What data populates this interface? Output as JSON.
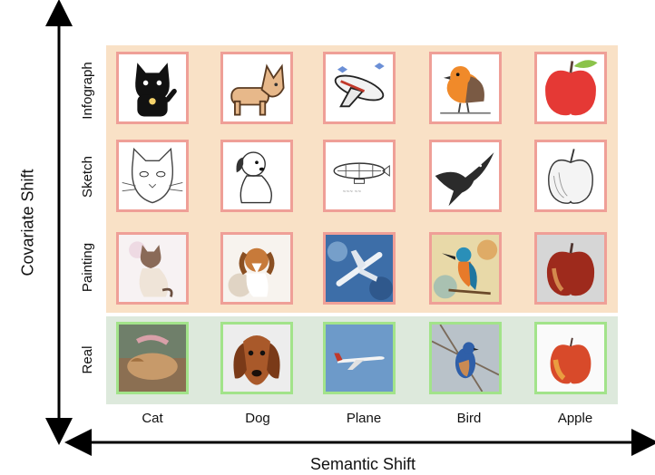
{
  "axes": {
    "y_title": "Covariate Shift",
    "x_title": "Semantic Shift"
  },
  "rows": [
    "Infograph",
    "Sketch",
    "Painting",
    "Real"
  ],
  "columns": [
    "Cat",
    "Dog",
    "Plane",
    "Bird",
    "Apple"
  ],
  "colors": {
    "ood_background": "#f9e1c6",
    "id_background": "#dde9dc",
    "ood_border": "#ef9f97",
    "id_border": "#a2e38a"
  },
  "tiles": [
    {
      "row": "Infograph",
      "col": "Cat",
      "icon": "lucky-cat-icon"
    },
    {
      "row": "Infograph",
      "col": "Dog",
      "icon": "corgi-icon"
    },
    {
      "row": "Infograph",
      "col": "Plane",
      "icon": "cartoon-plane-icon"
    },
    {
      "row": "Infograph",
      "col": "Bird",
      "icon": "robin-icon"
    },
    {
      "row": "Infograph",
      "col": "Apple",
      "icon": "red-apple-icon"
    },
    {
      "row": "Sketch",
      "col": "Cat",
      "icon": "cat-sketch-icon"
    },
    {
      "row": "Sketch",
      "col": "Dog",
      "icon": "puppy-sketch-icon"
    },
    {
      "row": "Sketch",
      "col": "Plane",
      "icon": "airship-sketch-icon"
    },
    {
      "row": "Sketch",
      "col": "Bird",
      "icon": "swallow-sketch-icon"
    },
    {
      "row": "Sketch",
      "col": "Apple",
      "icon": "apple-sketch-icon"
    },
    {
      "row": "Painting",
      "col": "Cat",
      "icon": "siamese-cat-painting-icon"
    },
    {
      "row": "Painting",
      "col": "Dog",
      "icon": "dog-watercolor-icon"
    },
    {
      "row": "Painting",
      "col": "Plane",
      "icon": "plane-painting-icon"
    },
    {
      "row": "Painting",
      "col": "Bird",
      "icon": "kingfisher-painting-icon"
    },
    {
      "row": "Painting",
      "col": "Apple",
      "icon": "apple-painting-icon"
    },
    {
      "row": "Real",
      "col": "Cat",
      "icon": "sleeping-cat-photo-icon"
    },
    {
      "row": "Real",
      "col": "Dog",
      "icon": "dachshund-photo-icon"
    },
    {
      "row": "Real",
      "col": "Plane",
      "icon": "airliner-photo-icon"
    },
    {
      "row": "Real",
      "col": "Bird",
      "icon": "bluebird-photo-icon"
    },
    {
      "row": "Real",
      "col": "Apple",
      "icon": "apple-photo-icon"
    }
  ]
}
